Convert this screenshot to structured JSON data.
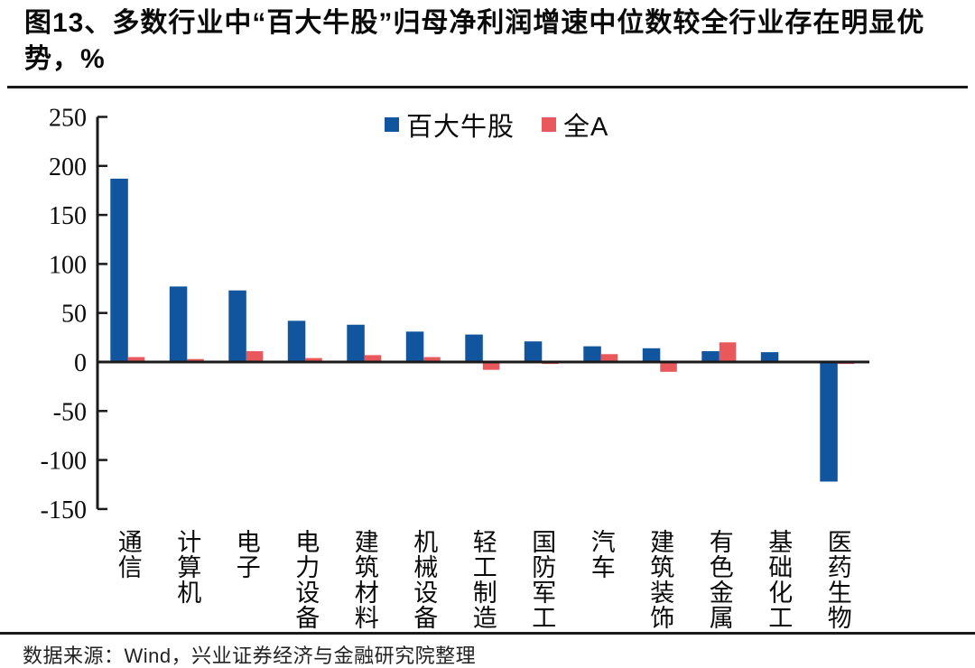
{
  "header": {
    "title": "图13、多数行业中“百大牛股”归母净利润增速中位数较全行业存在明显优势，%"
  },
  "legend": {
    "items": [
      {
        "label": "百大牛股",
        "color": "#10559E"
      },
      {
        "label": "全A",
        "color": "#E9585A"
      }
    ]
  },
  "footer": {
    "source": "数据来源：Wind，兴业证券经济与金融研究院整理"
  },
  "chart_data": {
    "type": "bar",
    "title": "图13、多数行业中“百大牛股”归母净利润增速中位数较全行业存在明显优势，%",
    "categories": [
      "通信",
      "计算机",
      "电子",
      "电力设备",
      "建筑材料",
      "机械设备",
      "轻工制造",
      "国防军工",
      "汽车",
      "建筑装饰",
      "有色金属",
      "基础化工",
      "医药生物"
    ],
    "series": [
      {
        "name": "百大牛股",
        "color": "#10559E",
        "values": [
          187,
          77,
          73,
          42,
          38,
          31,
          28,
          21,
          16,
          14,
          11,
          10,
          -122
        ]
      },
      {
        "name": "全A",
        "color": "#E9585A",
        "values": [
          5,
          3,
          11,
          4,
          7,
          5,
          -8,
          -2,
          8,
          -10,
          20,
          -1,
          -2
        ]
      }
    ],
    "xlabel": "",
    "ylabel": "",
    "ylim": [
      -150,
      250
    ],
    "yticks": [
      250,
      200,
      150,
      100,
      50,
      0,
      -50,
      -100,
      -150
    ],
    "grid": false,
    "legend_position": "top-center",
    "axis_color": "#1a1a1a"
  }
}
